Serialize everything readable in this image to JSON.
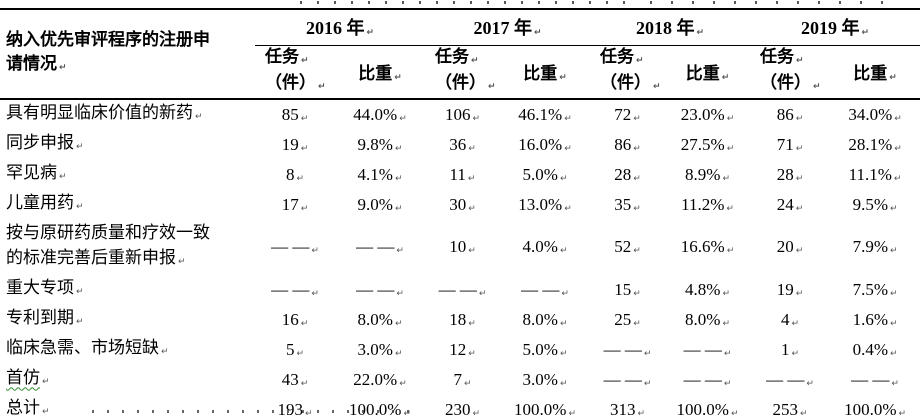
{
  "glyphs": {
    "return_mark": "↵"
  },
  "header": {
    "row_label": "纳入优先审评程序的注册申请情况",
    "years": [
      "2016 年",
      "2017 年",
      "2018 年",
      "2019 年"
    ],
    "sub_task_line1": "任务",
    "sub_task_line2": "（件）",
    "sub_share": "比重"
  },
  "rows": [
    {
      "label": "具有明显临床价值的新药",
      "cells": [
        "85",
        "44.0%",
        "106",
        "46.1%",
        "72",
        "23.0%",
        "86",
        "34.0%"
      ]
    },
    {
      "label": "同步申报",
      "cells": [
        "19",
        "9.8%",
        "36",
        "16.0%",
        "86",
        "27.5%",
        "71",
        "28.1%"
      ]
    },
    {
      "label": "罕见病",
      "cells": [
        "8",
        "4.1%",
        "11",
        "5.0%",
        "28",
        "8.9%",
        "28",
        "11.1%"
      ]
    },
    {
      "label": "儿童用药",
      "cells": [
        "17",
        "9.0%",
        "30",
        "13.0%",
        "35",
        "11.2%",
        "24",
        "9.5%"
      ]
    },
    {
      "label": "按与原研药质量和疗效一致的标准完善后重新申报",
      "cells": [
        "— —",
        "— —",
        "10",
        "4.0%",
        "52",
        "16.6%",
        "20",
        "7.9%"
      ]
    },
    {
      "label": "重大专项",
      "cells": [
        "— —",
        "— —",
        "— —",
        "— —",
        "15",
        "4.8%",
        "19",
        "7.5%"
      ]
    },
    {
      "label": "专利到期",
      "cells": [
        "16",
        "8.0%",
        "18",
        "8.0%",
        "25",
        "8.0%",
        "4",
        "1.6%"
      ]
    },
    {
      "label": "临床急需、市场短缺",
      "cells": [
        "5",
        "3.0%",
        "12",
        "5.0%",
        "— —",
        "— —",
        "1",
        "0.4%"
      ]
    },
    {
      "label": "首仿",
      "cells": [
        "43",
        "22.0%",
        "7",
        "3.0%",
        "— —",
        "— —",
        "— —",
        "— —"
      ]
    },
    {
      "label": "总计",
      "cells": [
        "193",
        "100.0%",
        "230",
        "100.0%",
        "313",
        "100.0%",
        "253",
        "100.0%"
      ]
    }
  ]
}
